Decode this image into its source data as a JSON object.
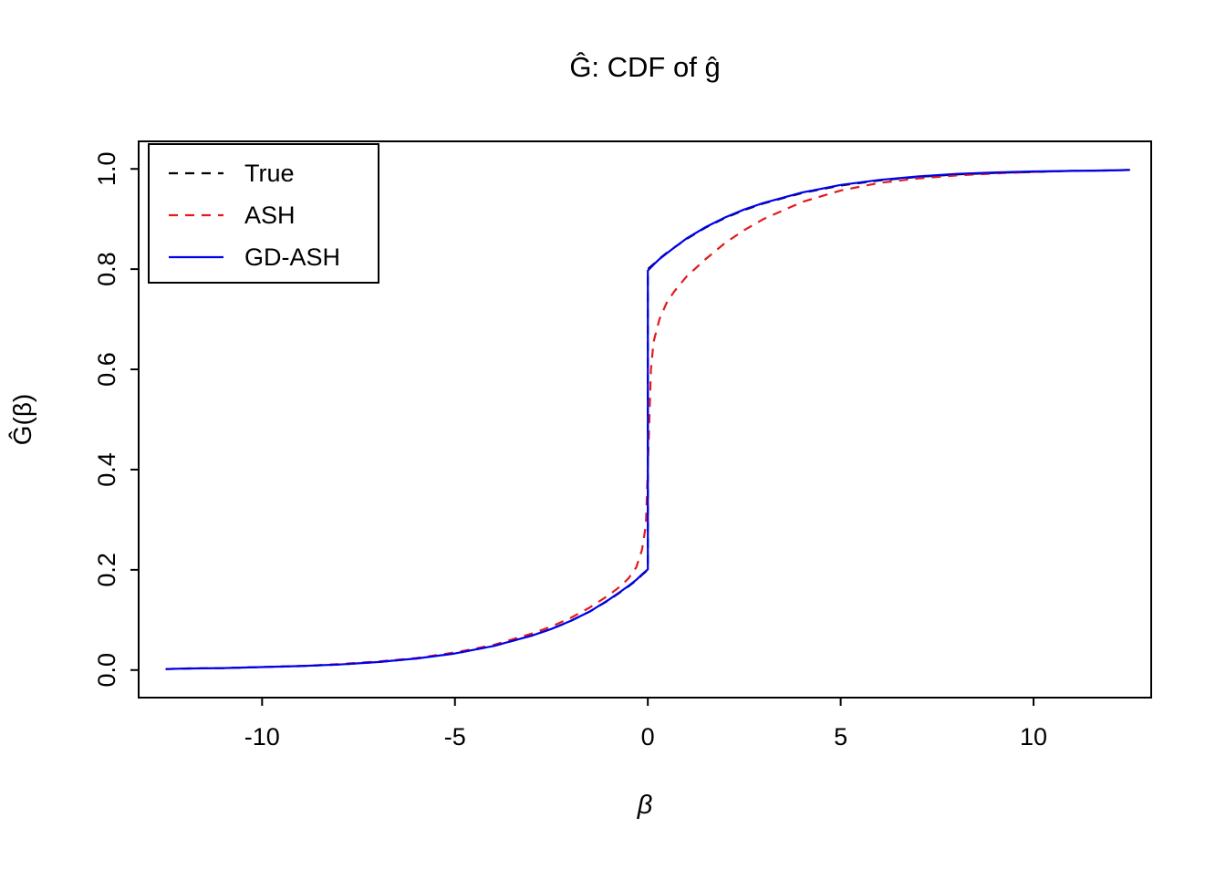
{
  "figure": {
    "title": "Ĝ: CDF of ĝ",
    "xlabel": "β",
    "ylabel": "Ĝ(β)"
  },
  "chart_data": {
    "type": "line",
    "title": "Ĝ: CDF of ĝ",
    "xlabel": "β",
    "ylabel": "Ĝ(β)",
    "xlim": [
      -13.2,
      13.05
    ],
    "ylim": [
      -0.055,
      1.055
    ],
    "x_ticks": [
      -10,
      -5,
      0,
      5,
      10
    ],
    "x_tick_labels": [
      "-10",
      "-5",
      "0",
      "5",
      "10"
    ],
    "y_ticks": [
      0.0,
      0.2,
      0.4,
      0.6,
      0.8,
      1.0
    ],
    "y_tick_labels": [
      "0.0",
      "0.2",
      "0.4",
      "0.6",
      "0.8",
      "1.0"
    ],
    "grid": false,
    "legend_position": "top-left",
    "legend_entries": [
      "True",
      "ASH",
      "GD-ASH"
    ],
    "series": [
      {
        "name": "True",
        "color": "#000000",
        "dash": "dashed",
        "x": [
          -12.5,
          -12,
          -11,
          -10,
          -9,
          -8,
          -7,
          -6,
          -5,
          -4,
          -3,
          -2.5,
          -2,
          -1.5,
          -1,
          -0.7,
          -0.5,
          -0.3,
          -0.15,
          0,
          0,
          0.15,
          0.3,
          0.5,
          0.7,
          1,
          1.5,
          2,
          2.5,
          3,
          4,
          5,
          6,
          7,
          8,
          9,
          10,
          11,
          12,
          12.5
        ],
        "y": [
          0.002,
          0.003,
          0.004,
          0.006,
          0.008,
          0.011,
          0.016,
          0.023,
          0.033,
          0.048,
          0.069,
          0.082,
          0.098,
          0.117,
          0.14,
          0.156,
          0.167,
          0.179,
          0.19,
          0.2,
          0.8,
          0.81,
          0.821,
          0.833,
          0.844,
          0.86,
          0.883,
          0.902,
          0.918,
          0.931,
          0.952,
          0.967,
          0.977,
          0.984,
          0.989,
          0.992,
          0.994,
          0.996,
          0.997,
          0.998
        ]
      },
      {
        "name": "ASH",
        "color": "#e31a1c",
        "dash": "dashed",
        "x": [
          -12.5,
          -12,
          -11,
          -10,
          -9,
          -8,
          -7,
          -6,
          -5,
          -4,
          -3,
          -2.5,
          -2,
          -1.5,
          -1,
          -0.7,
          -0.5,
          -0.3,
          -0.15,
          -0.05,
          0.02,
          0.08,
          0.15,
          0.3,
          0.5,
          0.7,
          1,
          1.5,
          2,
          2.5,
          3,
          4,
          5,
          6,
          7,
          8,
          9,
          10,
          11,
          12,
          12.5
        ],
        "y": [
          0.002,
          0.003,
          0.004,
          0.006,
          0.008,
          0.012,
          0.017,
          0.024,
          0.035,
          0.05,
          0.073,
          0.087,
          0.104,
          0.125,
          0.15,
          0.168,
          0.183,
          0.205,
          0.24,
          0.29,
          0.45,
          0.6,
          0.655,
          0.7,
          0.735,
          0.757,
          0.785,
          0.82,
          0.852,
          0.878,
          0.9,
          0.934,
          0.957,
          0.972,
          0.981,
          0.987,
          0.991,
          0.994,
          0.996,
          0.997,
          0.998
        ]
      },
      {
        "name": "GD-ASH",
        "color": "#0000ee",
        "dash": "solid",
        "x": [
          -12.5,
          -12,
          -11,
          -10,
          -9,
          -8,
          -7,
          -6,
          -5,
          -4,
          -3,
          -2.5,
          -2,
          -1.5,
          -1,
          -0.7,
          -0.5,
          -0.3,
          -0.15,
          0,
          0,
          0.15,
          0.3,
          0.5,
          0.7,
          1,
          1.5,
          2,
          2.5,
          3,
          4,
          5,
          6,
          7,
          8,
          9,
          10,
          11,
          12,
          12.5
        ],
        "y": [
          0.002,
          0.003,
          0.004,
          0.006,
          0.008,
          0.011,
          0.016,
          0.023,
          0.033,
          0.048,
          0.069,
          0.082,
          0.098,
          0.117,
          0.141,
          0.157,
          0.168,
          0.18,
          0.191,
          0.201,
          0.797,
          0.809,
          0.82,
          0.832,
          0.844,
          0.861,
          0.884,
          0.903,
          0.919,
          0.932,
          0.953,
          0.968,
          0.978,
          0.985,
          0.99,
          0.993,
          0.995,
          0.996,
          0.997,
          0.998
        ]
      }
    ]
  }
}
